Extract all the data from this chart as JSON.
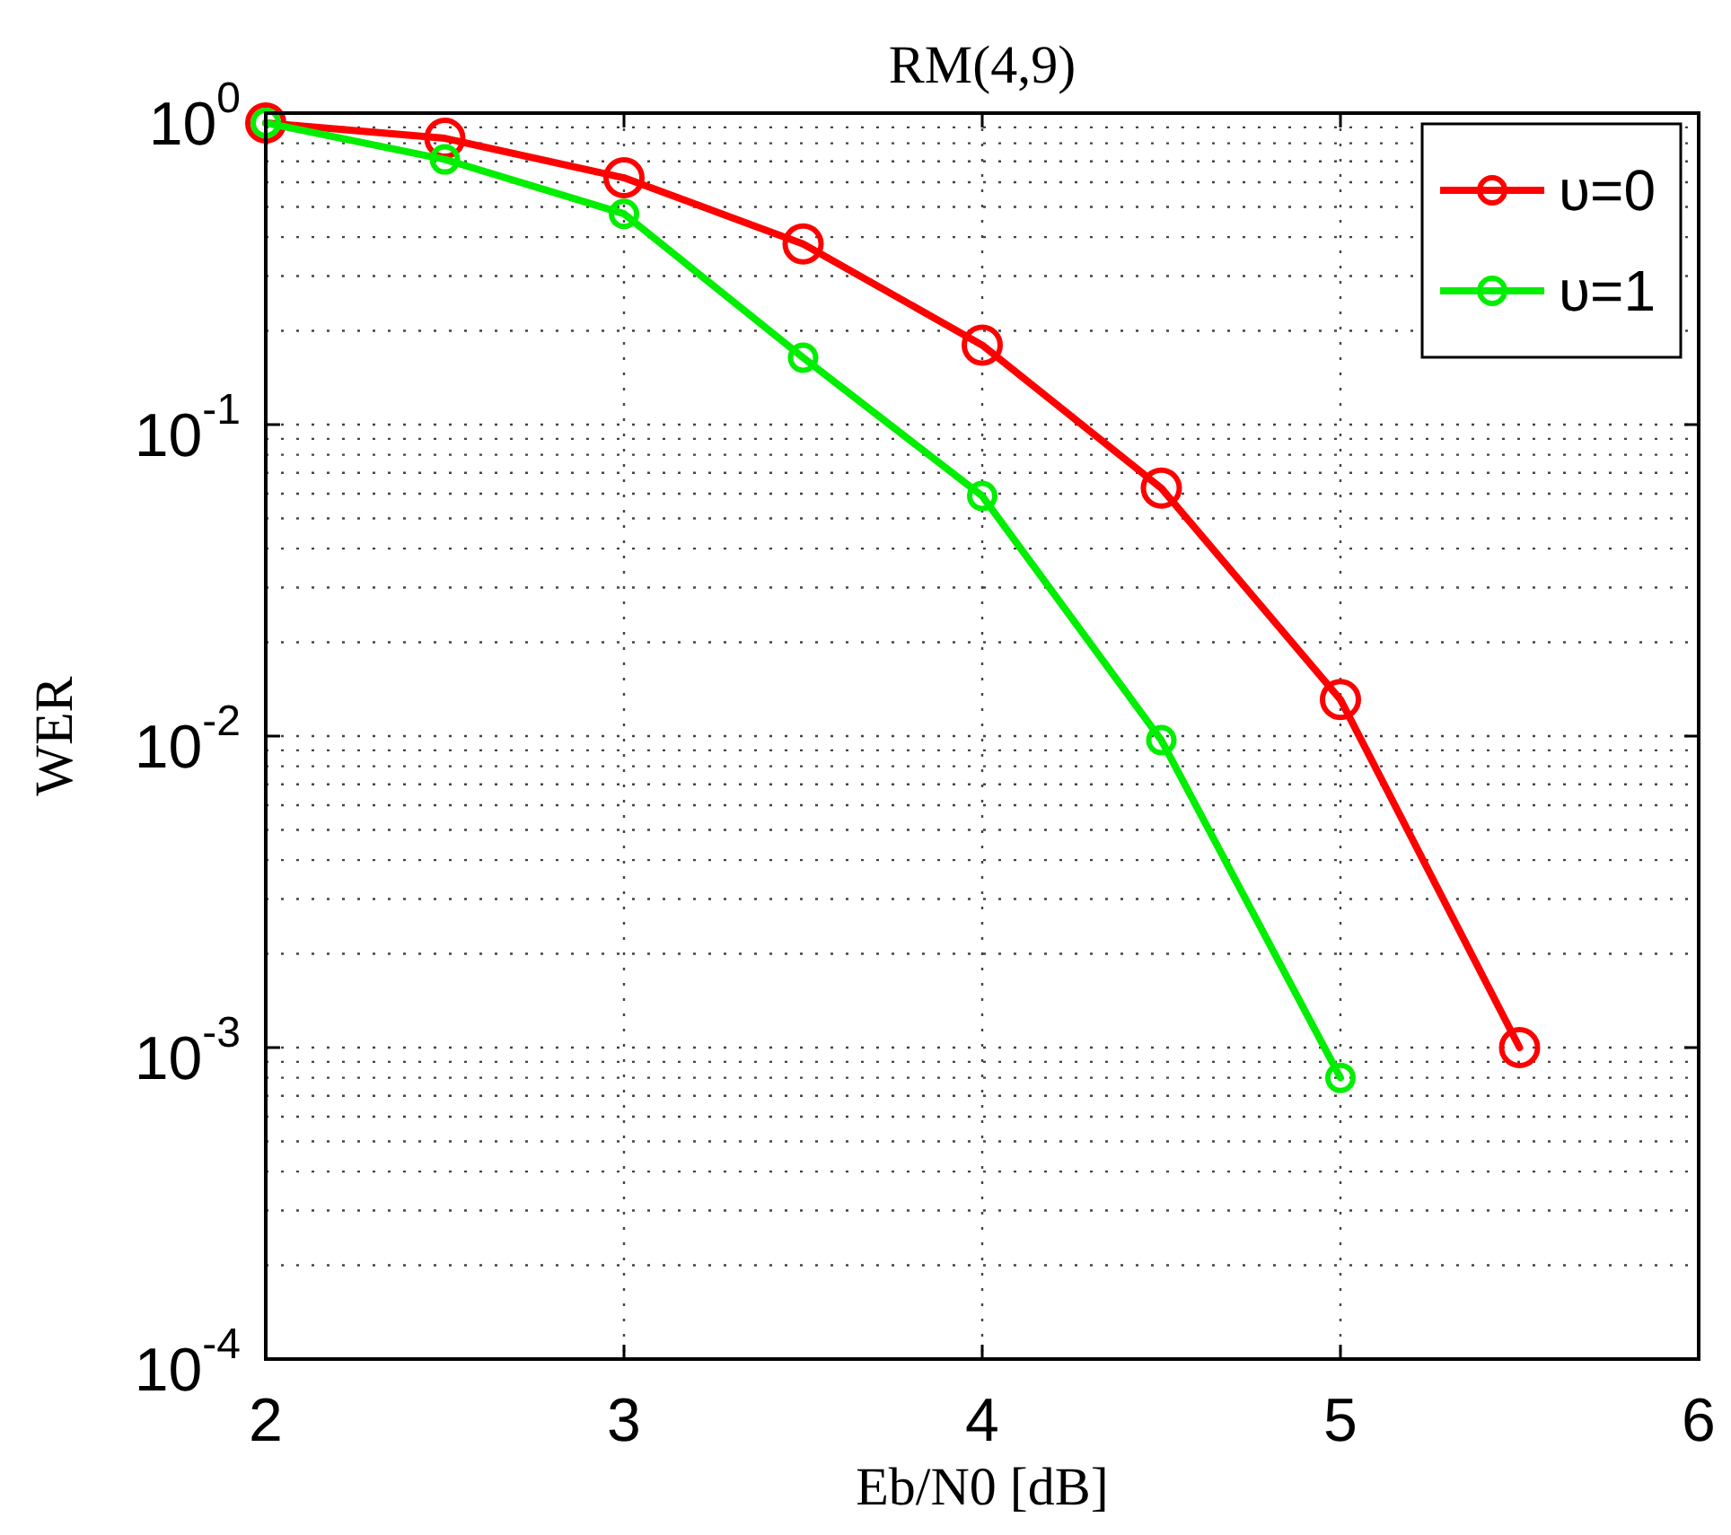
{
  "chart_data": {
    "type": "line",
    "title": "RM(4,9)",
    "xlabel": "Eb/N0 [dB]",
    "ylabel": "WER",
    "x": [
      2,
      2.5,
      3,
      3.5,
      4,
      4.5,
      5,
      5.5
    ],
    "series": [
      {
        "name": "υ=0",
        "color": "#ff0000",
        "values": [
          0.93,
          0.83,
          0.62,
          0.38,
          0.18,
          0.0625,
          0.0131,
          0.001
        ]
      },
      {
        "name": "υ=1",
        "color": "#00ee00",
        "values": [
          0.93,
          0.71,
          0.475,
          0.164,
          0.059,
          0.0097,
          0.0008,
          null
        ]
      }
    ],
    "log": "y",
    "xlim": [
      2,
      6
    ],
    "xticks": [
      2,
      3,
      4,
      5,
      6
    ],
    "ylim": [
      0.0001,
      1
    ],
    "yticks": [
      {
        "value": 0.0001,
        "label": "10$^{-4}$"
      },
      {
        "value": 0.001,
        "label": "10$^{-3}$"
      },
      {
        "value": 0.01,
        "label": "10$^{-2}$"
      },
      {
        "value": 0.1,
        "label": "10$^{-1}$"
      },
      {
        "value": 1,
        "label": "10$^{0}$"
      }
    ],
    "grid": true,
    "legend": "top right",
    "marker": "circle",
    "line_style": "solid"
  }
}
